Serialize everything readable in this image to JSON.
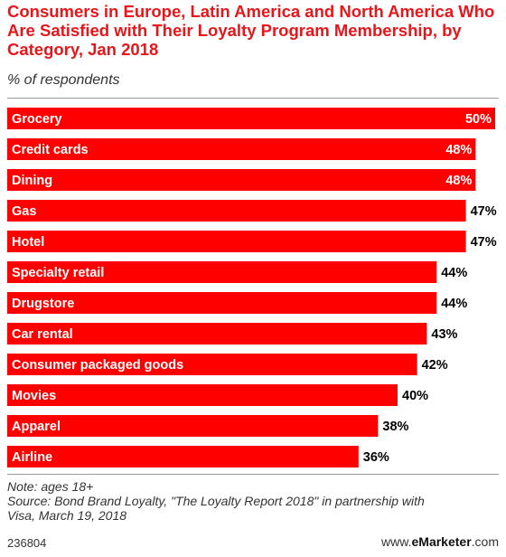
{
  "chart_data": {
    "type": "bar",
    "orientation": "horizontal",
    "title": "Consumers in Europe, Latin America and North America Who Are Satisfied with Their Loyalty Program Membership, by Category, Jan 2018",
    "subtitle": "% of respondents",
    "categories": [
      "Grocery",
      "Credit cards",
      "Dining",
      "Gas",
      "Hotel",
      "Specialty retail",
      "Drugstore",
      "Car rental",
      "Consumer packaged goods",
      "Movies",
      "Apparel",
      "Airline"
    ],
    "values": [
      50,
      48,
      48,
      47,
      47,
      44,
      44,
      43,
      42,
      40,
      38,
      36
    ],
    "value_labels": [
      "50%",
      "48%",
      "48%",
      "47%",
      "47%",
      "44%",
      "44%",
      "43%",
      "42%",
      "40%",
      "38%",
      "36%"
    ],
    "xlim": [
      0,
      50
    ],
    "grid": false,
    "legend": "none",
    "bar_color": "#ff0000",
    "label_color_inside": "#ffffff",
    "label_color_outside": "#000000"
  },
  "notes": {
    "note": "Note: ages 18+",
    "source_line1": "Source: Bond Brand Loyalty, \"The Loyalty Report 2018\" in partnership with",
    "source_line2": "Visa, March 19, 2018"
  },
  "footer": {
    "id": "236804",
    "brand_prefix": "www.",
    "brand_name": "eMarketer",
    "brand_suffix": ".com"
  }
}
